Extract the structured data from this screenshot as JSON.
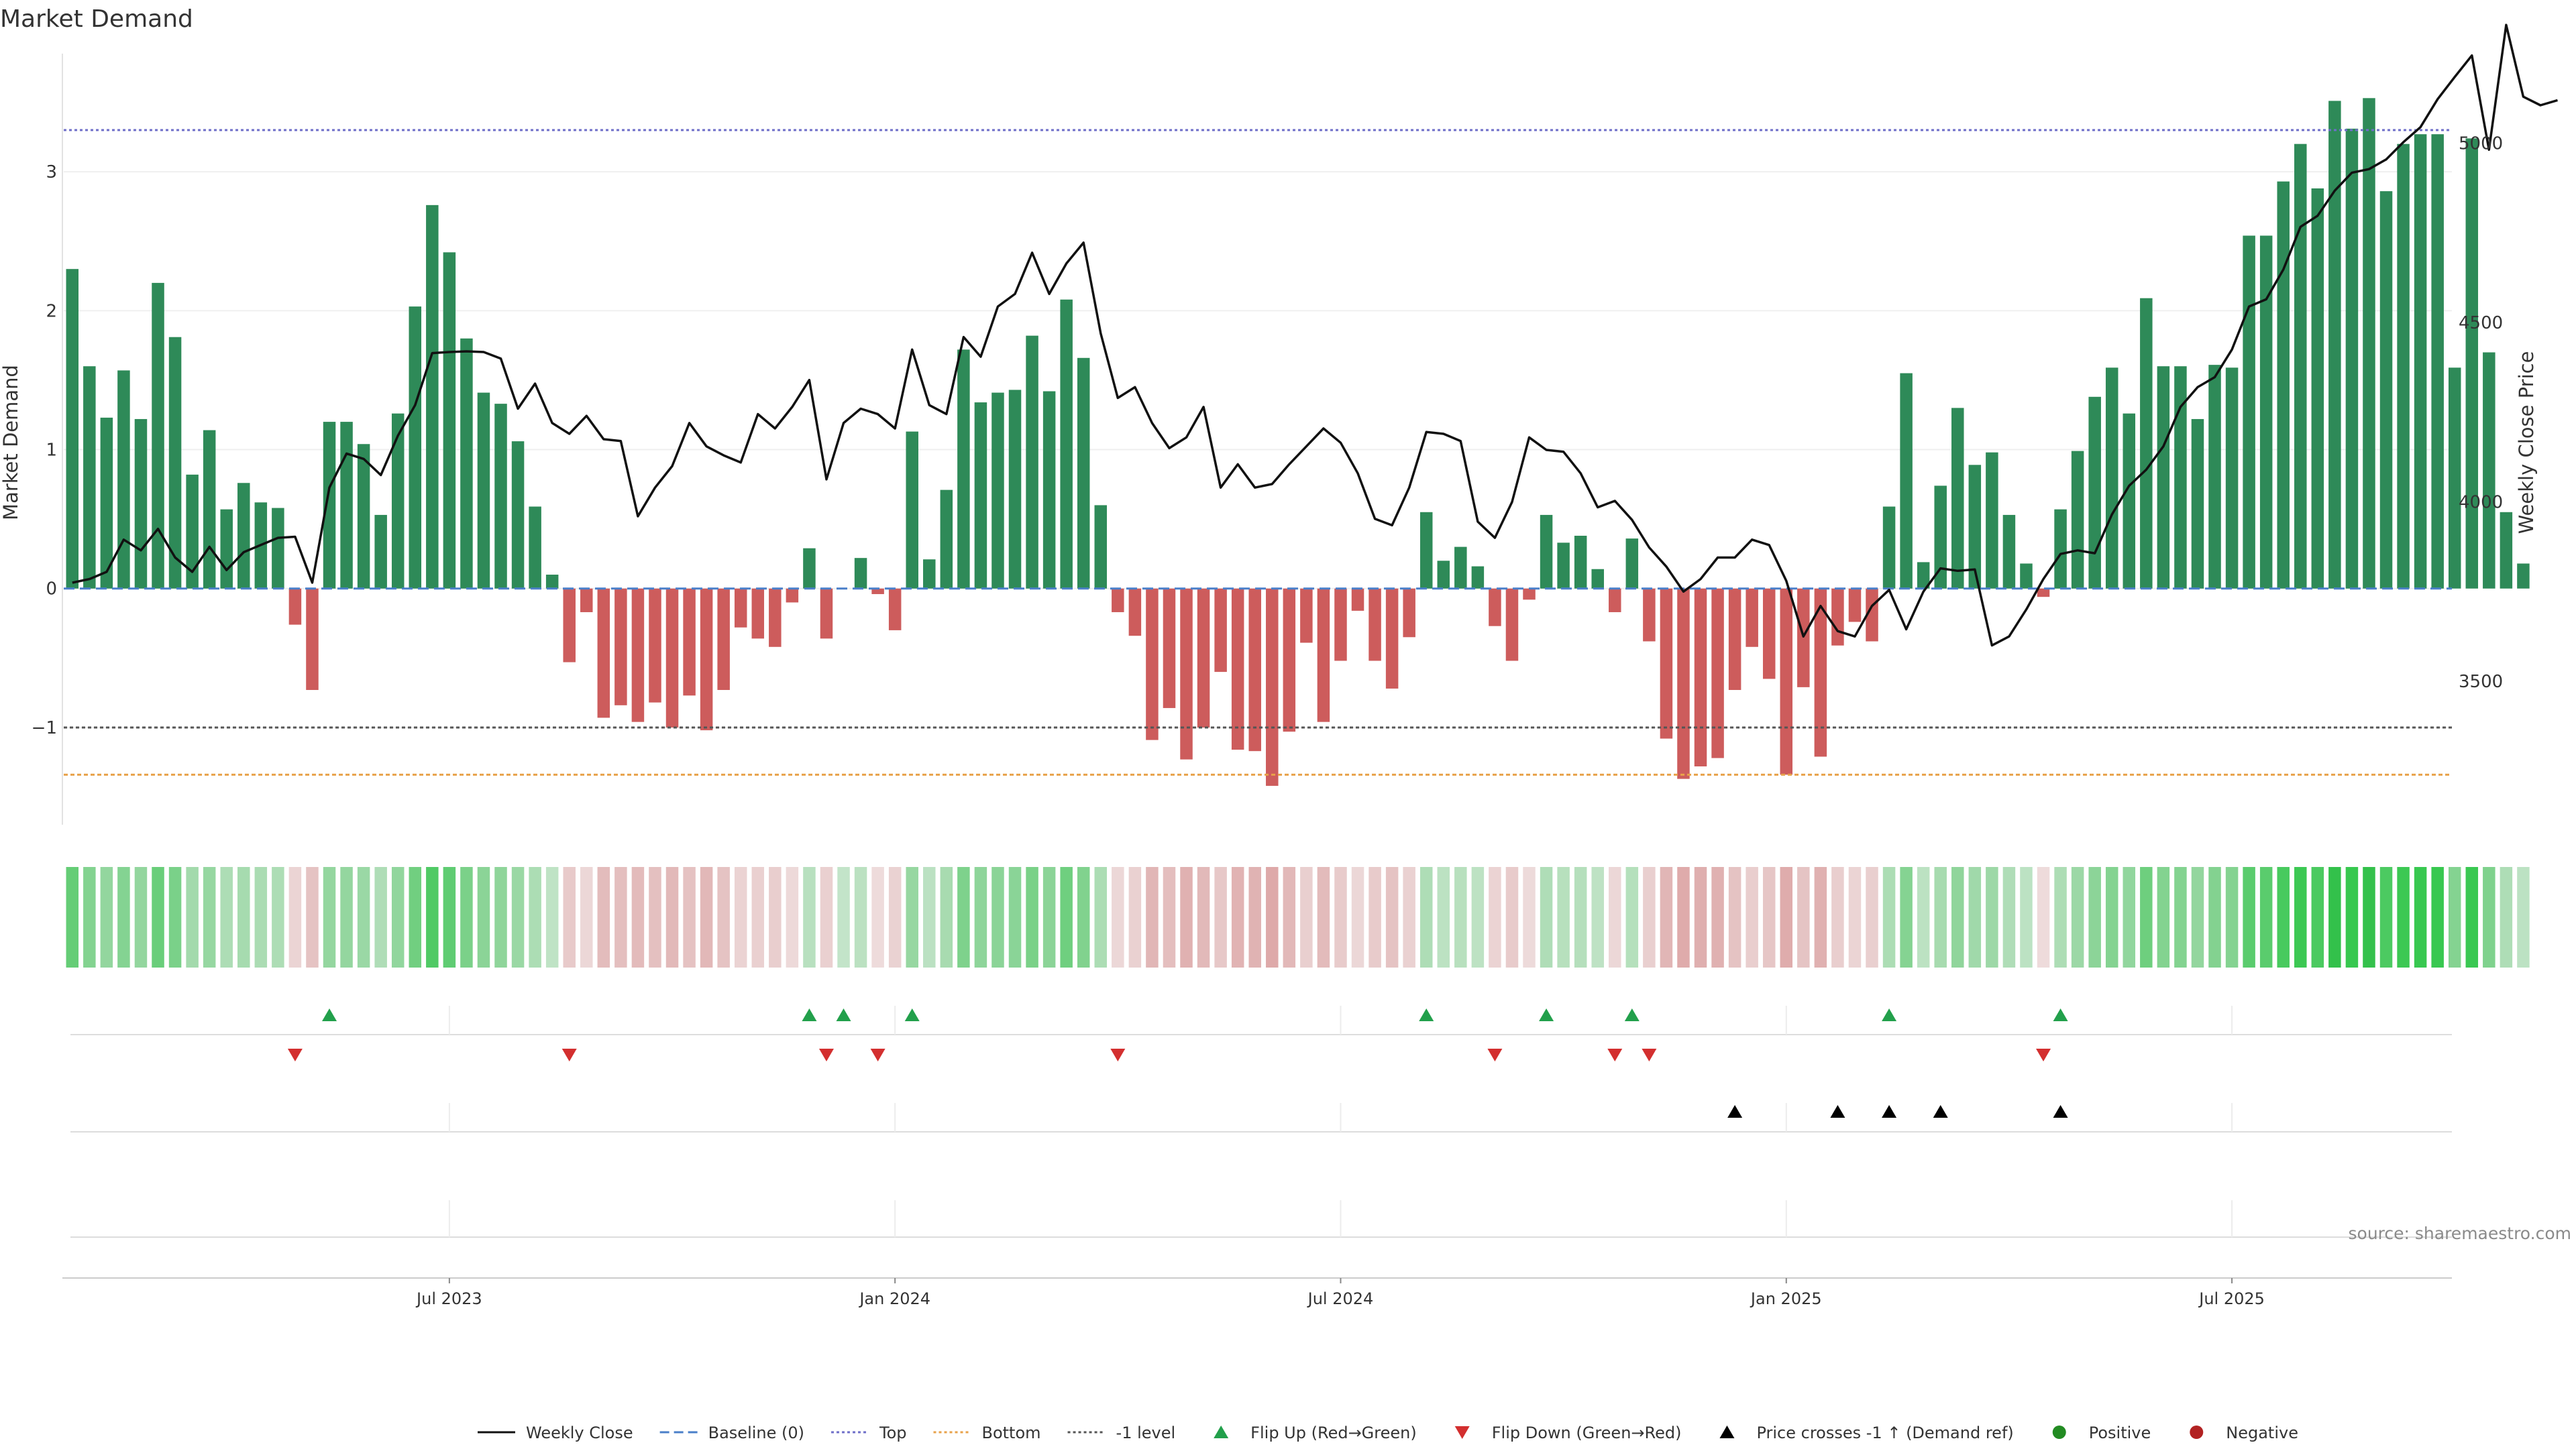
{
  "chart_data": {
    "type": "bar",
    "title": "Market Demand",
    "ylabel": "Market Demand",
    "y2label": "Weekly Close Price",
    "ylim": [
      -1.7,
      3.85
    ],
    "y2lim": [
      3100,
      5250
    ],
    "yticks": [
      -1,
      0,
      1,
      2,
      3
    ],
    "y2ticks": [
      3500,
      4000,
      4500,
      5000
    ],
    "xticks": [
      "Jul 2023",
      "Jan 2024",
      "Jul 2024",
      "Jan 2025",
      "Jul 2025"
    ],
    "xtick_weeks": [
      22,
      48,
      74,
      100,
      126
    ],
    "levels": {
      "top": 3.3,
      "bottom": -1.34,
      "minus_one": -1,
      "baseline": 0
    },
    "demand": [
      2.3,
      1.6,
      1.23,
      1.57,
      1.22,
      2.2,
      1.81,
      0.82,
      1.14,
      0.57,
      0.76,
      0.62,
      0.58,
      -0.26,
      -0.73,
      1.2,
      1.2,
      1.04,
      0.53,
      1.26,
      2.03,
      2.76,
      2.42,
      1.8,
      1.41,
      1.33,
      1.06,
      0.59,
      0.1,
      -0.53,
      -0.17,
      -0.93,
      -0.84,
      -0.96,
      -0.82,
      -1.0,
      -0.77,
      -1.02,
      -0.73,
      -0.28,
      -0.36,
      -0.42,
      -0.1,
      0.29,
      -0.36,
      0,
      0.22,
      -0.04,
      -0.3,
      1.13,
      0.21,
      0.71,
      1.72,
      1.34,
      1.41,
      1.43,
      1.82,
      1.42,
      2.08,
      1.66,
      0.6,
      -0.17,
      -0.34,
      -1.09,
      -0.86,
      -1.23,
      -1.0,
      -0.6,
      -1.16,
      -1.17,
      -1.42,
      -1.03,
      -0.39,
      -0.96,
      -0.52,
      -0.16,
      -0.52,
      -0.72,
      -0.35,
      0.55,
      0.2,
      0.3,
      0.16,
      -0.27,
      -0.52,
      -0.08,
      0.53,
      0.33,
      0.38,
      0.14,
      -0.17,
      0.36,
      -0.38,
      -1.08,
      -1.37,
      -1.28,
      -1.22,
      -0.73,
      -0.42,
      -0.65,
      -1.34,
      -0.71,
      -1.21,
      -0.41,
      -0.24,
      -0.38,
      0.59,
      1.55,
      0.19,
      0.74,
      1.3,
      0.89,
      0.98,
      0.53,
      0.18,
      -0.06,
      0.57,
      0.99,
      1.38,
      1.59,
      1.26,
      2.09,
      1.6,
      1.6,
      1.22,
      1.61,
      1.59,
      2.54,
      2.54,
      2.93,
      3.2,
      2.88,
      3.51,
      3.31,
      3.53,
      2.86,
      3.2,
      3.27,
      3.27,
      1.59,
      3.24,
      1.7,
      0.55,
      0.18
    ],
    "close": [
      3775,
      3785,
      3805,
      3895,
      3865,
      3925,
      3845,
      3805,
      3875,
      3810,
      3860,
      3880,
      3900,
      3903,
      3775,
      4040,
      4135,
      4120,
      4075,
      4185,
      4270,
      4415,
      4418,
      4420,
      4418,
      4400,
      4260,
      4330,
      4220,
      4190,
      4240,
      4175,
      4170,
      3960,
      4040,
      4100,
      4220,
      4155,
      4130,
      4110,
      4245,
      4205,
      4265,
      4340,
      4063,
      4220,
      4260,
      4245,
      4205,
      4425,
      4270,
      4245,
      4460,
      4405,
      4545,
      4580,
      4695,
      4580,
      4665,
      4723,
      4470,
      4290,
      4320,
      4220,
      4150,
      4180,
      4265,
      4040,
      4105,
      4040,
      4050,
      4105,
      4155,
      4205,
      4165,
      4080,
      3953,
      3935,
      4040,
      4195,
      4190,
      4170,
      3945,
      3900,
      4000,
      4180,
      4145,
      4140,
      4080,
      3985,
      4003,
      3950,
      3873,
      3820,
      3750,
      3785,
      3845,
      3845,
      3895,
      3880,
      3780,
      3625,
      3710,
      3640,
      3625,
      3710,
      3755,
      3645,
      3750,
      3815,
      3808,
      3812,
      3600,
      3625,
      3700,
      3785,
      3855,
      3865,
      3857,
      3965,
      4045,
      4090,
      4155,
      4265,
      4320,
      4348,
      4425,
      4545,
      4565,
      4648,
      4767,
      4798,
      4868,
      4918,
      4928,
      4955,
      5003,
      5045,
      5123,
      5185,
      5245,
      4982,
      5330,
      5130,
      5106,
      5120
    ]
  },
  "panels": {
    "intensity": "demand",
    "flip_up_weeks": [
      15,
      43,
      45,
      49,
      79,
      86,
      91,
      106,
      116
    ],
    "flip_down_weeks": [
      13,
      29,
      44,
      47,
      61,
      83,
      90,
      92,
      115
    ],
    "price_cross_weeks": [
      97,
      103,
      106,
      109,
      116
    ]
  },
  "colors": {
    "positive_bar": "#2e8a58",
    "negative_bar": "#cd5c5c",
    "price_line": "#111111",
    "top_line": "#6f6fc9",
    "bottom_line": "#e8a24a",
    "minus_one_line": "#555555",
    "baseline": "#4a7fc9",
    "flip_up": "#22a04b",
    "flip_down": "#d32f2f",
    "cross": "#000000",
    "positive_dot": "#228b22",
    "negative_dot": "#b22222"
  },
  "source": "source: sharemaestro.com",
  "legend": [
    {
      "label": "Weekly Close",
      "kind": "solid-line",
      "color": "#111111"
    },
    {
      "label": "Baseline (0)",
      "kind": "dashed-line",
      "color": "#4a7fc9"
    },
    {
      "label": "Top",
      "kind": "dotted-line",
      "color": "#6f6fc9"
    },
    {
      "label": "Bottom",
      "kind": "dotted-line",
      "color": "#e8a24a"
    },
    {
      "label": "-1 level",
      "kind": "dotted-line",
      "color": "#555555"
    },
    {
      "label": "Flip Up (Red→Green)",
      "kind": "triangle-up",
      "color": "#22a04b"
    },
    {
      "label": "Flip Down (Green→Red)",
      "kind": "triangle-down",
      "color": "#d32f2f"
    },
    {
      "label": "Price crosses -1 ↑ (Demand ref)",
      "kind": "triangle-up",
      "color": "#000000"
    },
    {
      "label": "Positive",
      "kind": "circle",
      "color": "#228b22"
    },
    {
      "label": "Negative",
      "kind": "circle",
      "color": "#b22222"
    }
  ]
}
